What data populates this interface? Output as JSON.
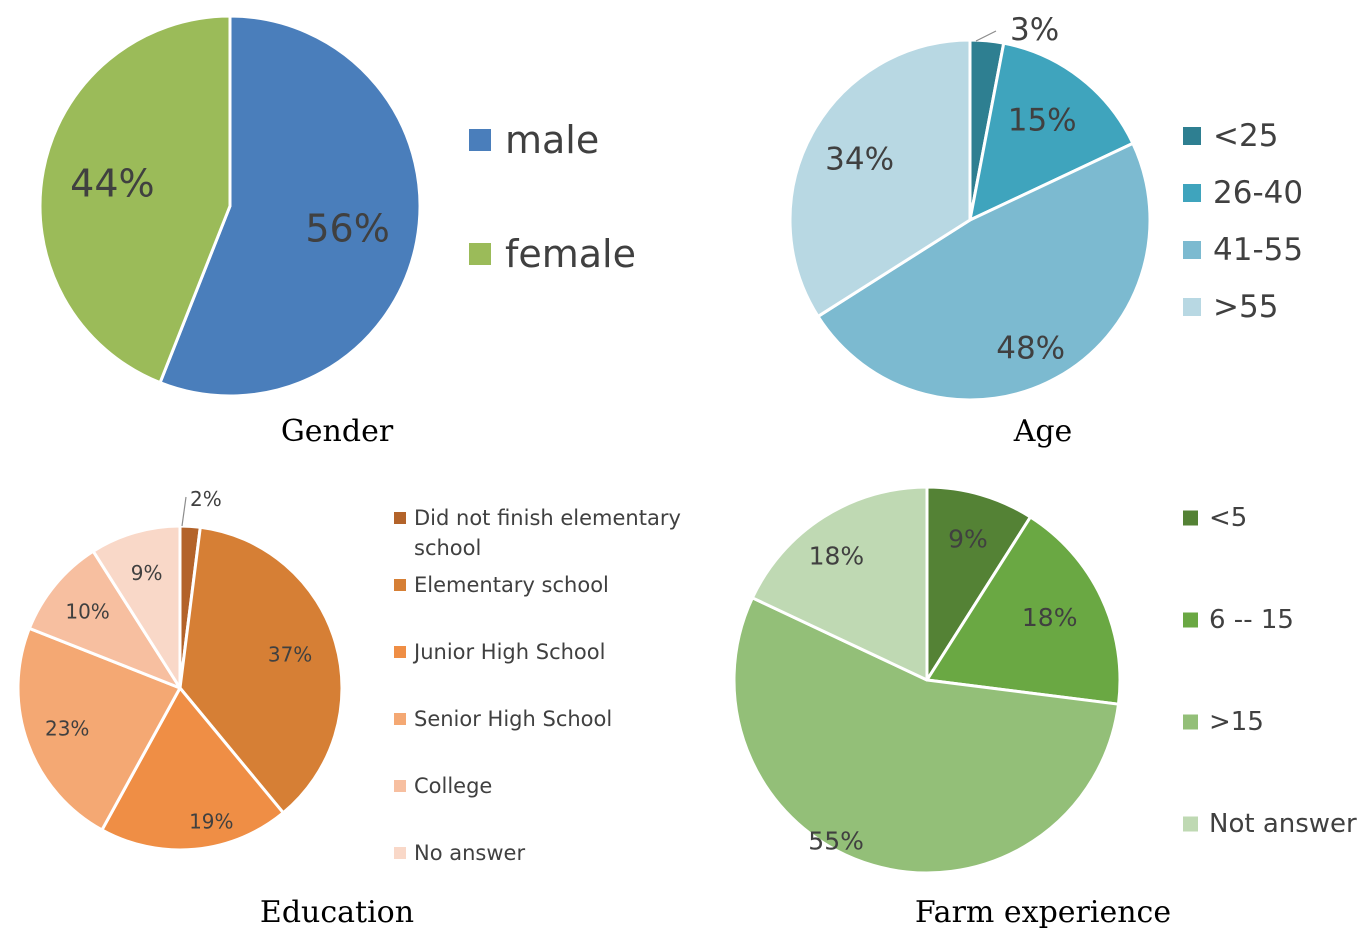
{
  "chart_data": [
    {
      "type": "pie",
      "title": "Gender",
      "categories": [
        "male",
        "female"
      ],
      "values": [
        56,
        44
      ],
      "labels": [
        "56%",
        "44%"
      ],
      "colors": [
        "#4a7ebb",
        "#9bbb59"
      ],
      "legend": "right"
    },
    {
      "type": "pie",
      "title": "Age",
      "categories": [
        "<25",
        "26-40",
        "41-55",
        ">55"
      ],
      "values": [
        3,
        15,
        48,
        34
      ],
      "labels": [
        "3%",
        "15%",
        "48%",
        "34%"
      ],
      "colors": [
        "#2e7f91",
        "#3fa4bd",
        "#7cbad0",
        "#b8d8e3"
      ],
      "legend": "right"
    },
    {
      "type": "pie",
      "title": "Education",
      "categories": [
        "Did not finish elementary school",
        "Elementary school",
        "Junior High School",
        "Senior High School",
        "College",
        "No answer"
      ],
      "legend_lines": [
        [
          "Did not finish elementary",
          "school"
        ],
        [
          "Elementary school"
        ],
        [
          "Junior High School"
        ],
        [
          "Senior High School"
        ],
        [
          "College"
        ],
        [
          "No answer"
        ]
      ],
      "values": [
        2,
        37,
        19,
        23,
        10,
        9
      ],
      "labels": [
        "2%",
        "37%",
        "19%",
        "23%",
        "10%",
        "9%"
      ],
      "colors": [
        "#b3632a",
        "#d67f35",
        "#ef8e45",
        "#f4a873",
        "#f7bfa0",
        "#f9d8c8"
      ],
      "legend": "right"
    },
    {
      "type": "pie",
      "title": "Farm experience",
      "categories": [
        "<5",
        "6 -- 15",
        ">15",
        "Not answer"
      ],
      "values": [
        9,
        18,
        55,
        18
      ],
      "labels": [
        "9%",
        "18%",
        "55%",
        "18%"
      ],
      "colors": [
        "#548235",
        "#6aa843",
        "#93bf78",
        "#bfd9b3"
      ],
      "legend": "right"
    }
  ]
}
